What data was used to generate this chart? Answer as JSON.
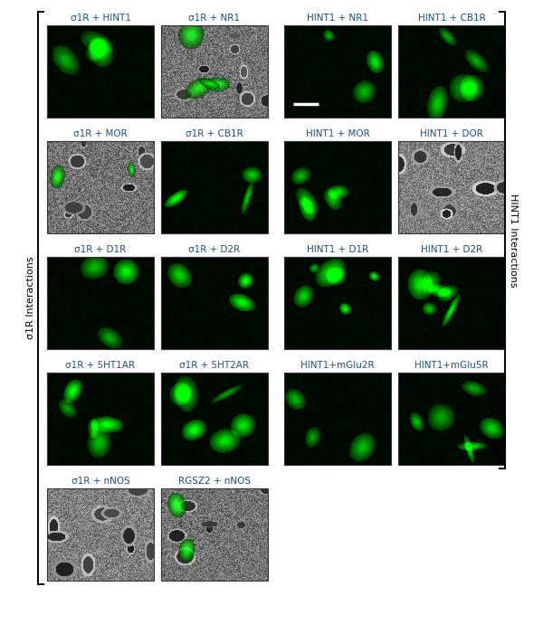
{
  "left_panel_labels": [
    [
      "σ1R + HINT1",
      "σ1R + NR1"
    ],
    [
      "σ1R + MOR",
      "σ1R + CB1R"
    ],
    [
      "σ1R + D1R",
      "σ1R + D2R"
    ],
    [
      "σ1R + 5HT1AR",
      "σ1R + 5HT2AR"
    ],
    [
      "σ1R + nNOS",
      "RGSZ2 + nNOS"
    ]
  ],
  "right_panel_labels": [
    [
      "HINT1 + NR1",
      "HINT1 + CB1R"
    ],
    [
      "HINT1 + MOR",
      "HINT1 + DOR"
    ],
    [
      "HINT1 + D1R",
      "HINT1 + D2R"
    ],
    [
      "HINT1+mGlu2R",
      "HINT1+mGlu5R"
    ]
  ],
  "left_bracket_label": "σ1R Interactions",
  "right_bracket_label": "HINT1 Interactions",
  "label_color": "#1a5276",
  "background_color": "#ffffff",
  "label_fontsize": 7.5
}
